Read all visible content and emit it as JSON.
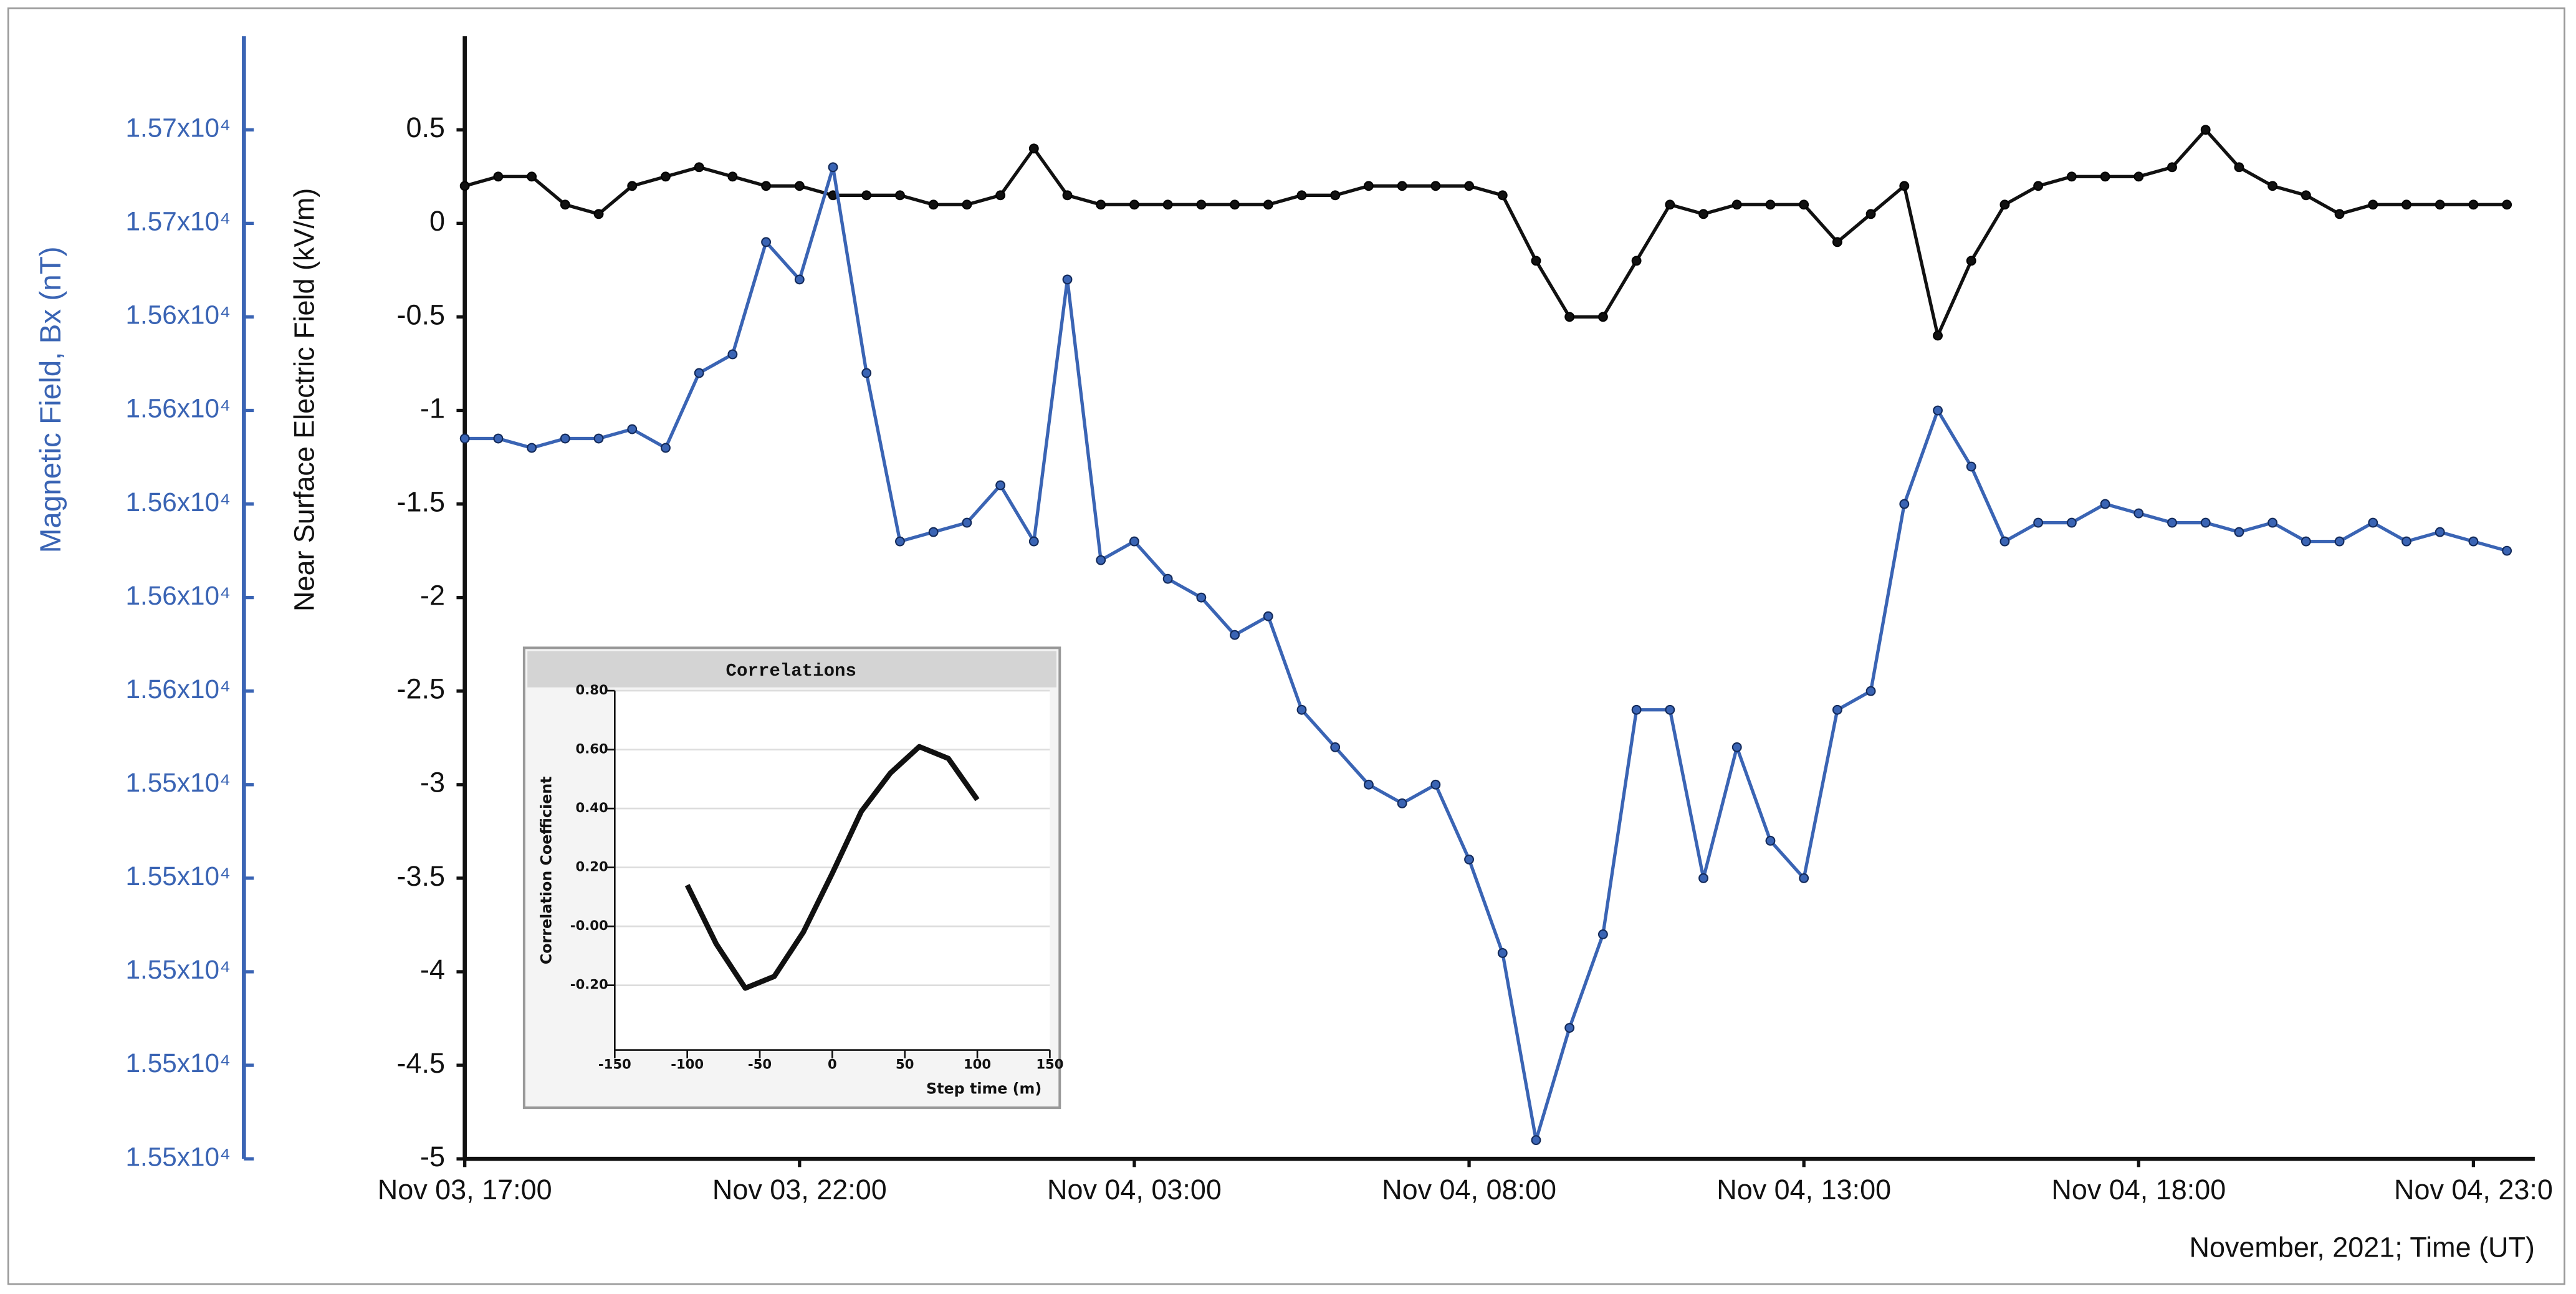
{
  "chart_data": [
    {
      "type": "line",
      "xlabel": "November, 2021; Time (UT)",
      "ylabel": "Near Surface Electric Field (kV/m)",
      "y2label": "Magnetic Field, Bx (nT)",
      "x": [
        "2021-11-03 17:00",
        "2021-11-03 17:30",
        "2021-11-03 18:00",
        "2021-11-03 18:30",
        "2021-11-03 19:00",
        "2021-11-03 19:30",
        "2021-11-03 20:00",
        "2021-11-03 20:30",
        "2021-11-03 21:00",
        "2021-11-03 21:30",
        "2021-11-03 22:00",
        "2021-11-03 22:30",
        "2021-11-03 23:00",
        "2021-11-03 23:30",
        "2021-11-04 00:00",
        "2021-11-04 00:30",
        "2021-11-04 01:00",
        "2021-11-04 01:30",
        "2021-11-04 02:00",
        "2021-11-04 02:30",
        "2021-11-04 03:00",
        "2021-11-04 03:30",
        "2021-11-04 04:00",
        "2021-11-04 04:30",
        "2021-11-04 05:00",
        "2021-11-04 05:30",
        "2021-11-04 06:00",
        "2021-11-04 06:30",
        "2021-11-04 07:00",
        "2021-11-04 07:30",
        "2021-11-04 08:00",
        "2021-11-04 08:30",
        "2021-11-04 09:00",
        "2021-11-04 09:30",
        "2021-11-04 10:00",
        "2021-11-04 10:30",
        "2021-11-04 11:00",
        "2021-11-04 11:30",
        "2021-11-04 12:00",
        "2021-11-04 12:30",
        "2021-11-04 13:00",
        "2021-11-04 13:30",
        "2021-11-04 14:00",
        "2021-11-04 14:30",
        "2021-11-04 15:00",
        "2021-11-04 15:30",
        "2021-11-04 16:00",
        "2021-11-04 16:30",
        "2021-11-04 17:00",
        "2021-11-04 17:30",
        "2021-11-04 18:00",
        "2021-11-04 18:30",
        "2021-11-04 19:00",
        "2021-11-04 19:30",
        "2021-11-04 20:00",
        "2021-11-04 20:30",
        "2021-11-04 21:00",
        "2021-11-04 21:30",
        "2021-11-04 22:00",
        "2021-11-04 22:30",
        "2021-11-04 23:00",
        "2021-11-04 23:30"
      ],
      "series": [
        {
          "color": "#111111",
          "axis": "y",
          "values": [
            0.2,
            0.25,
            0.25,
            0.1,
            0.05,
            0.2,
            0.25,
            0.3,
            0.25,
            0.2,
            0.2,
            0.15,
            0.15,
            0.15,
            0.1,
            0.1,
            0.15,
            0.4,
            0.15,
            0.1,
            0.1,
            0.1,
            0.1,
            0.1,
            0.1,
            0.15,
            0.15,
            0.2,
            0.2,
            0.2,
            0.2,
            0.15,
            -0.2,
            -0.5,
            -0.5,
            -0.2,
            0.1,
            0.05,
            0.1,
            0.1,
            0.1,
            -0.1,
            0.05,
            0.2,
            -0.6,
            -0.2,
            0.1,
            0.2,
            0.25,
            0.25,
            0.25,
            0.3,
            0.5,
            0.3,
            0.2,
            0.15,
            0.05,
            0.1,
            0.1,
            0.1,
            0.1,
            0.1
          ]
        },
        {
          "color": "#3a64b4",
          "axis": "y2",
          "values": [
            15614,
            15614,
            15612,
            15614,
            15614,
            15616,
            15612,
            15628,
            15632,
            15656,
            15648,
            15672,
            15628,
            15592,
            15594,
            15596,
            15604,
            15592,
            15648,
            15588,
            15592,
            15584,
            15580,
            15572,
            15576,
            15556,
            15548,
            15540,
            15536,
            15540,
            15524,
            15504,
            15464,
            15488,
            15508,
            15556,
            15556,
            15520,
            15548,
            15528,
            15520,
            15556,
            15560,
            15600,
            15620,
            15608,
            15592,
            15596,
            15596,
            15600,
            15598,
            15596,
            15596,
            15594,
            15596,
            15592,
            15592,
            15596,
            15592,
            15594,
            15592,
            15590
          ]
        }
      ],
      "xlim": [
        "2021-11-03 17:00",
        "2021-11-04 23:55"
      ],
      "xticks": [
        {
          "value": "2021-11-03 17:00",
          "label": "Nov 03, 17:00"
        },
        {
          "value": "2021-11-03 22:00",
          "label": "Nov 03, 22:00"
        },
        {
          "value": "2021-11-04 03:00",
          "label": "Nov 04, 03:00"
        },
        {
          "value": "2021-11-04 08:00",
          "label": "Nov 04, 08:00"
        },
        {
          "value": "2021-11-04 13:00",
          "label": "Nov 04, 13:00"
        },
        {
          "value": "2021-11-04 18:00",
          "label": "Nov 04, 18:00"
        },
        {
          "value": "2021-11-04 23:00",
          "label": "Nov 04, 23:0"
        }
      ],
      "ylim": [
        -5,
        1.0
      ],
      "yticks": [
        0.5,
        0,
        -0.5,
        -1,
        -1.5,
        -2,
        -2.5,
        -3,
        -3.5,
        -4,
        -4.5,
        -5
      ],
      "y2lim": [
        15460,
        15700
      ],
      "y2ticks": [
        {
          "value": 15680,
          "label": "1.57x10⁴"
        },
        {
          "value": 15660,
          "label": "1.57x10⁴"
        },
        {
          "value": 15640,
          "label": "1.56x10⁴"
        },
        {
          "value": 15620,
          "label": "1.56x10⁴"
        },
        {
          "value": 15600,
          "label": "1.56x10⁴"
        },
        {
          "value": 15580,
          "label": "1.56x10⁴"
        },
        {
          "value": 15560,
          "label": "1.56x10⁴"
        },
        {
          "value": 15540,
          "label": "1.55x10⁴"
        },
        {
          "value": 15520,
          "label": "1.55x10⁴"
        },
        {
          "value": 15500,
          "label": "1.55x10⁴"
        },
        {
          "value": 15480,
          "label": "1.55x10⁴"
        },
        {
          "value": 15460,
          "label": "1.55x10⁴"
        }
      ],
      "y2color": "#3a64b4",
      "grid": false
    },
    {
      "type": "line",
      "title": "Correlations",
      "xlabel": "Step time (m)",
      "ylabel": "Correlation Coefficient",
      "x": [
        -100,
        -80,
        -60,
        -40,
        -20,
        0,
        20,
        40,
        60,
        80,
        100
      ],
      "series": [
        {
          "color": "#111111",
          "values": [
            0.14,
            -0.06,
            -0.21,
            -0.17,
            -0.02,
            0.18,
            0.39,
            0.52,
            0.61,
            0.57,
            0.43
          ]
        }
      ],
      "xlim": [
        -150,
        150
      ],
      "xticks": [
        -150,
        -100,
        -50,
        0,
        50,
        100,
        150
      ],
      "ylim": [
        -0.42,
        0.8
      ],
      "yticks": [
        {
          "value": 0.8,
          "label": "0.80"
        },
        {
          "value": 0.6,
          "label": "0.60"
        },
        {
          "value": 0.4,
          "label": "0.40"
        },
        {
          "value": 0.2,
          "label": "0.20"
        },
        {
          "value": 0,
          "label": "-0.00"
        },
        {
          "value": -0.2,
          "label": "-0.20"
        }
      ],
      "grid": true
    }
  ]
}
